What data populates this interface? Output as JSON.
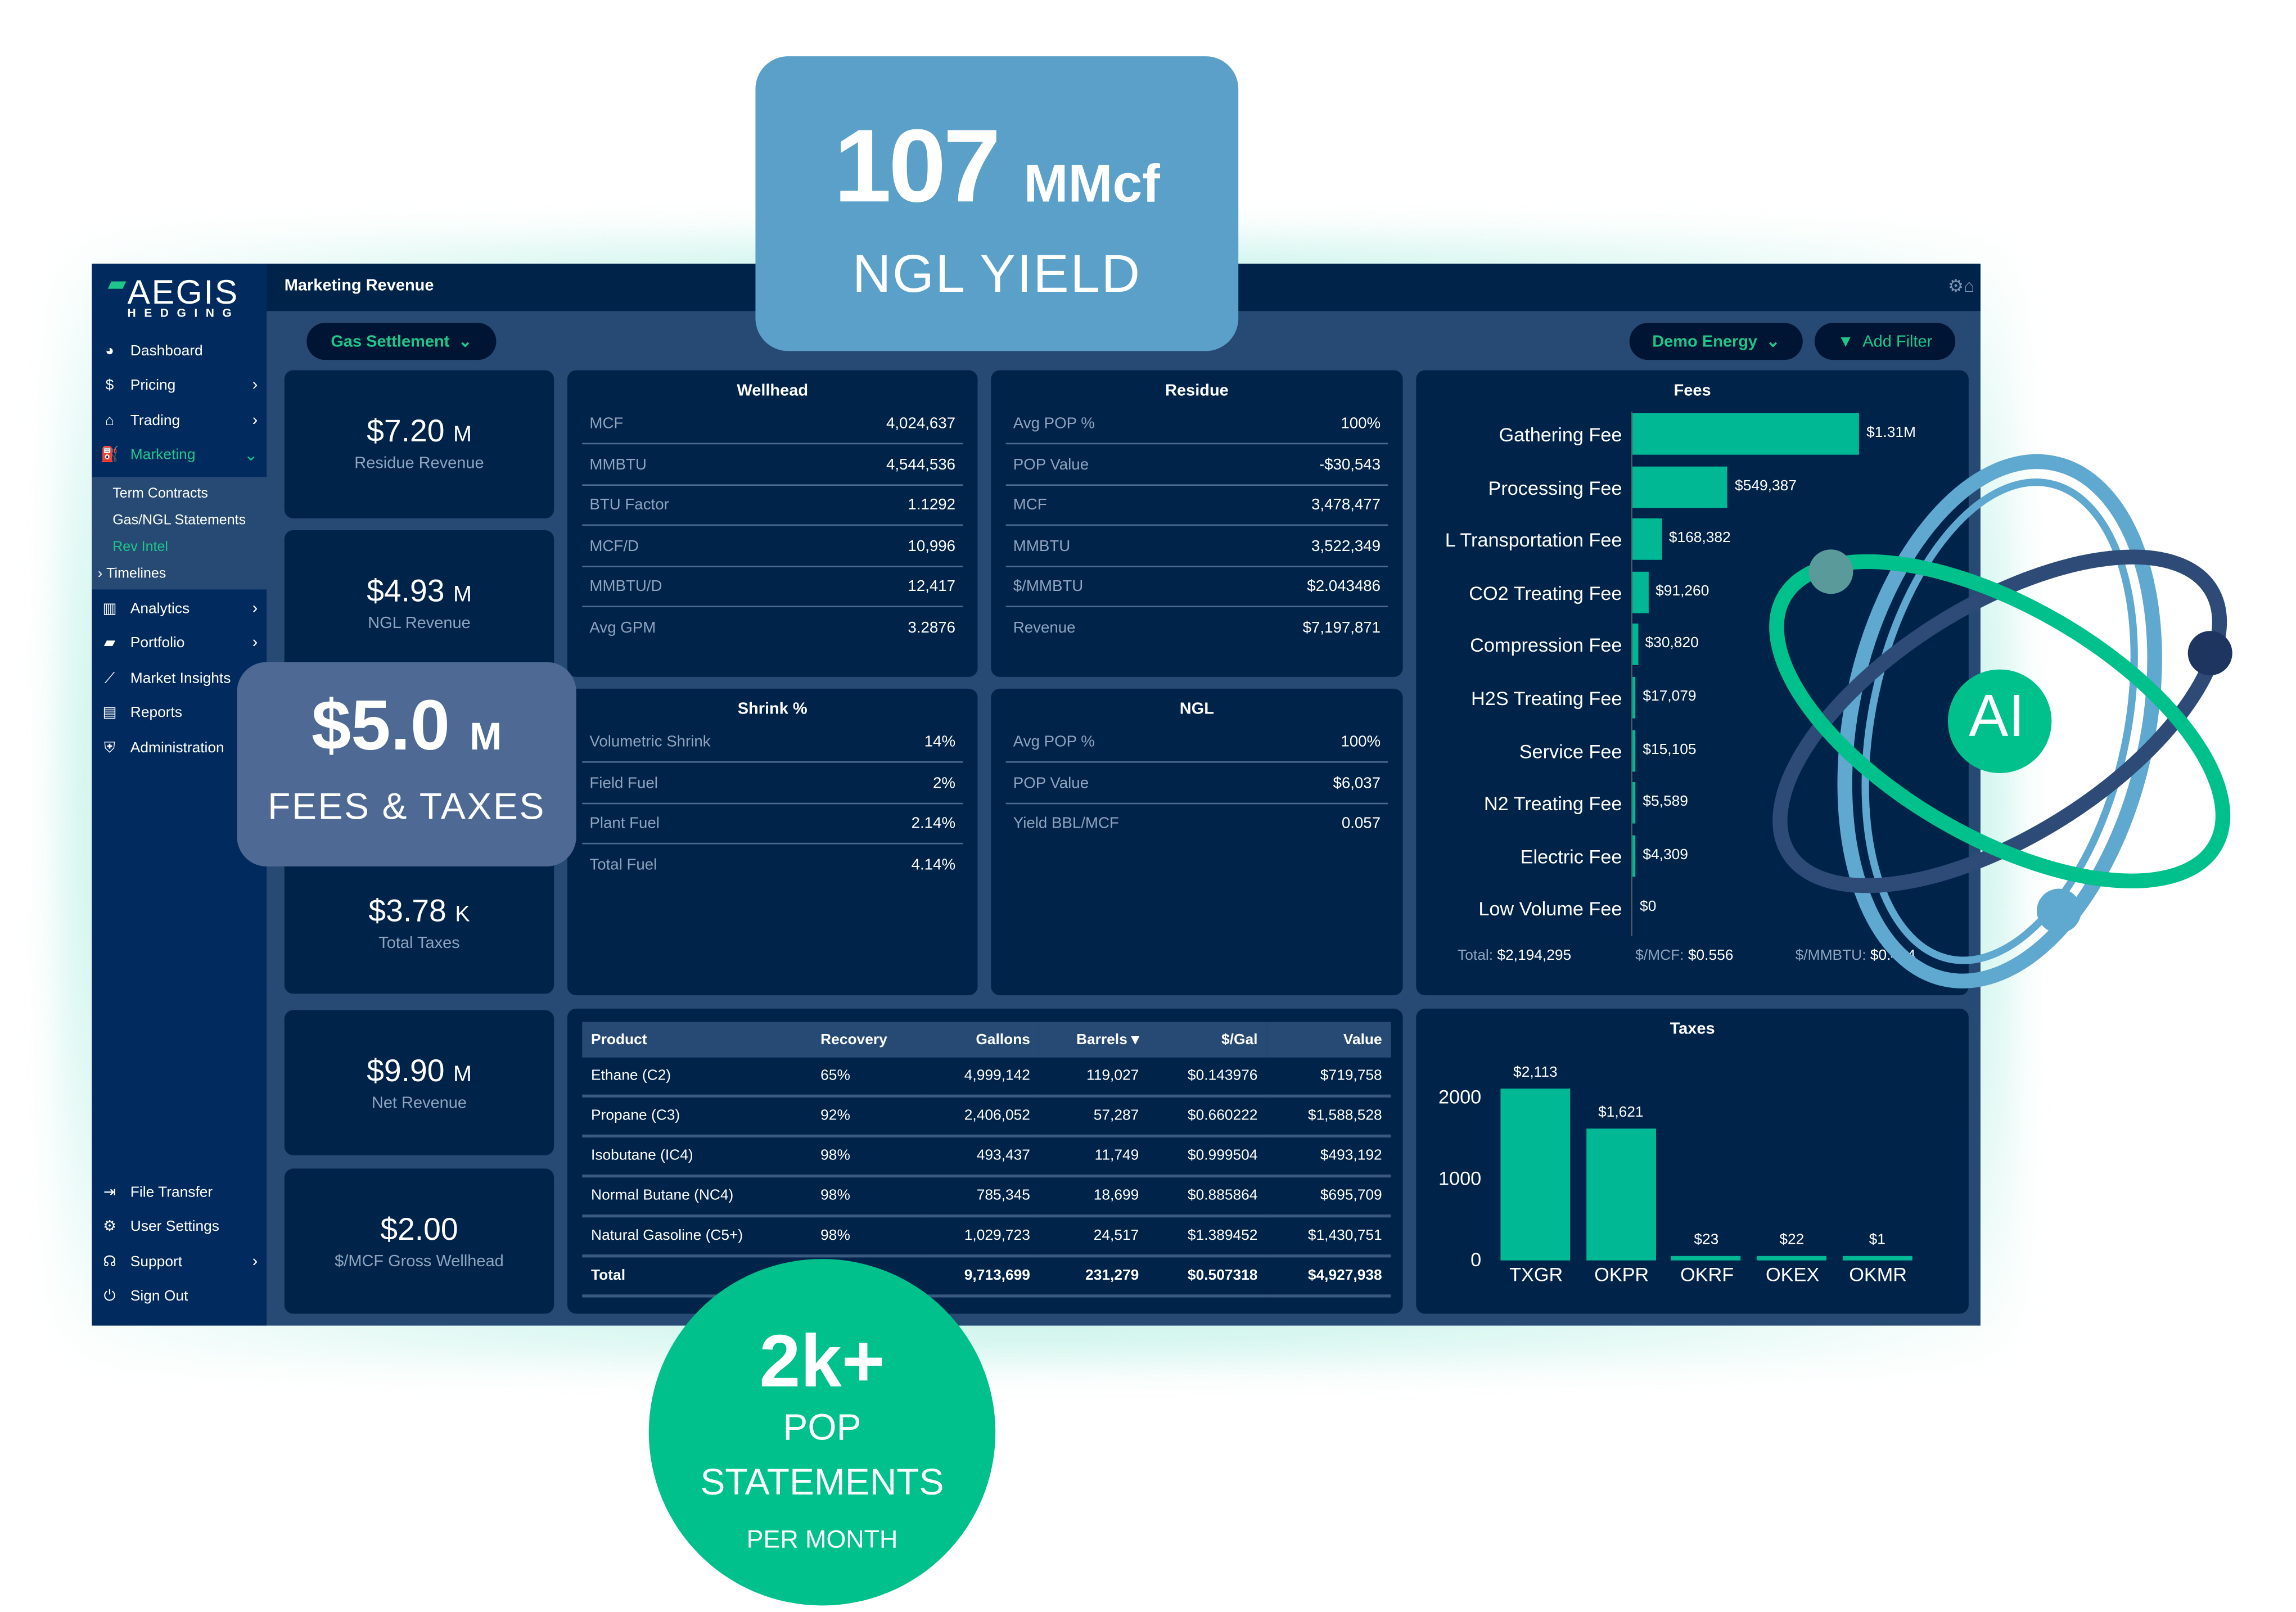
{
  "sidebar": {
    "logo": {
      "name": "AEGIS",
      "sub": "HEDGING"
    },
    "items": [
      {
        "label": "Dashboard",
        "icon": "dashboard-icon"
      },
      {
        "label": "Pricing",
        "icon": "dollar-icon"
      },
      {
        "label": "Trading",
        "icon": "bank-icon"
      },
      {
        "label": "Marketing",
        "icon": "pumpjack-icon"
      },
      {
        "label": "Analytics",
        "icon": "analytics-icon"
      },
      {
        "label": "Portfolio",
        "icon": "briefcase-icon"
      },
      {
        "label": "Market Insights",
        "icon": "line-chart-icon"
      },
      {
        "label": "Reports",
        "icon": "file-icon"
      },
      {
        "label": "Administration",
        "icon": "shield-icon"
      }
    ],
    "marketing_sub": [
      "Term Contracts",
      "Gas/NGL Statements",
      "Rev Intel",
      "Timelines"
    ],
    "bottom": [
      {
        "label": "File Transfer",
        "icon": "file-transfer-icon"
      },
      {
        "label": "User Settings",
        "icon": "gear-icon"
      },
      {
        "label": "Support",
        "icon": "headset-icon"
      },
      {
        "label": "Sign Out",
        "icon": "power-icon"
      }
    ]
  },
  "header": {
    "title": "Marketing Revenue"
  },
  "filters": {
    "settlement": "Gas Settlement",
    "company": "Demo Energy",
    "add_filter": "Add Filter"
  },
  "kpis": [
    {
      "value": "$7.20",
      "unit": "M",
      "label": "Residue Revenue"
    },
    {
      "value": "$4.93",
      "unit": "M",
      "label": "NGL Revenue"
    },
    {
      "value": "$3.78",
      "unit": "K",
      "label": "Total Taxes"
    },
    {
      "value": "$9.90",
      "unit": "M",
      "label": "Net Revenue"
    },
    {
      "value": "$2.00",
      "unit": "",
      "label": "$/MCF Gross Wellhead"
    }
  ],
  "wellhead": {
    "title": "Wellhead",
    "rows": [
      [
        "MCF",
        "4,024,637"
      ],
      [
        "MMBTU",
        "4,544,536"
      ],
      [
        "BTU Factor",
        "1.1292"
      ],
      [
        "MCF/D",
        "10,996"
      ],
      [
        "MMBTU/D",
        "12,417"
      ],
      [
        "Avg GPM",
        "3.2876"
      ]
    ]
  },
  "residue": {
    "title": "Residue",
    "rows": [
      [
        "Avg POP %",
        "100%"
      ],
      [
        "POP Value",
        "-$30,543"
      ],
      [
        "MCF",
        "3,478,477"
      ],
      [
        "MMBTU",
        "3,522,349"
      ],
      [
        "$/MMBTU",
        "$2.043486"
      ],
      [
        "Revenue",
        "$7,197,871"
      ]
    ]
  },
  "shrink": {
    "title": "Shrink %",
    "rows": [
      [
        "Volumetric Shrink",
        "14%"
      ],
      [
        "Field Fuel",
        "2%"
      ],
      [
        "Plant Fuel",
        "2.14%"
      ],
      [
        "Total Fuel",
        "4.14%"
      ]
    ]
  },
  "ngl": {
    "title": "NGL",
    "rows": [
      [
        "Avg POP %",
        "100%"
      ],
      [
        "POP Value",
        "$6,037"
      ],
      [
        "Yield BBL/MCF",
        "0.057"
      ]
    ]
  },
  "products": {
    "columns": [
      "Product",
      "Recovery",
      "Gallons",
      "Barrels ▾",
      "$/Gal",
      "Value"
    ],
    "rows": [
      [
        "Ethane (C2)",
        "65%",
        "4,999,142",
        "119,027",
        "$0.143976",
        "$719,758"
      ],
      [
        "Propane (C3)",
        "92%",
        "2,406,052",
        "57,287",
        "$0.660222",
        "$1,588,528"
      ],
      [
        "Isobutane (IC4)",
        "98%",
        "493,437",
        "11,749",
        "$0.999504",
        "$493,192"
      ],
      [
        "Normal Butane (NC4)",
        "98%",
        "785,345",
        "18,699",
        "$0.885864",
        "$695,709"
      ],
      [
        "Natural Gasoline (C5+)",
        "98%",
        "1,029,723",
        "24,517",
        "$1.389452",
        "$1,430,751"
      ]
    ],
    "total": [
      "Total",
      "",
      "9,713,699",
      "231,279",
      "$0.507318",
      "$4,927,938"
    ]
  },
  "chart_data": [
    {
      "type": "bar",
      "orientation": "horizontal",
      "title": "Fees",
      "categories": [
        "Gathering Fee",
        "Processing Fee",
        "L Transportation Fee",
        "CO2 Treating Fee",
        "Compression Fee",
        "H2S Treating Fee",
        "Service Fee",
        "N2 Treating Fee",
        "Electric Fee",
        "Low Volume Fee"
      ],
      "values": [
        1310000,
        549387,
        168382,
        91260,
        30820,
        17079,
        15105,
        5589,
        4309,
        0
      ],
      "labels": [
        "$1.31M",
        "$549,387",
        "$168,382",
        "$91,260",
        "$30,820",
        "$17,079",
        "$15,105",
        "$5,589",
        "$4,309",
        "$0"
      ],
      "footer": {
        "total_label": "Total:",
        "total": "$2,194,295",
        "mcf_label": "$/MCF:",
        "mcf": "$0.556",
        "mmbtu_label": "$/MMBTU:",
        "mmbtu": "$0.494"
      },
      "color": "#00b894"
    },
    {
      "type": "bar",
      "title": "Taxes",
      "categories": [
        "TXGR",
        "OKPR",
        "OKRF",
        "OKEX",
        "OKMR"
      ],
      "values": [
        2113,
        1621,
        23,
        22,
        1
      ],
      "labels": [
        "$2,113",
        "$1,621",
        "$23",
        "$22",
        "$1"
      ],
      "yticks": [
        "0",
        "1000",
        "2000"
      ],
      "ylim": [
        0,
        2300
      ],
      "color": "#00b894"
    }
  ],
  "overlays": {
    "ngl_yield": {
      "value": "107",
      "unit": "MMcf",
      "label": "NGL YIELD"
    },
    "fees_taxes": {
      "value": "$5.0",
      "unit": "M",
      "label": "FEES & TAXES"
    },
    "pop": {
      "value": "2k+",
      "line1": "POP",
      "line2": "STATEMENTS",
      "line3": "PER MONTH"
    },
    "ai": {
      "label": "AI"
    }
  },
  "colors": {
    "accent": "#1fc68a",
    "navy": "#00234a",
    "panel": "#264a73"
  }
}
